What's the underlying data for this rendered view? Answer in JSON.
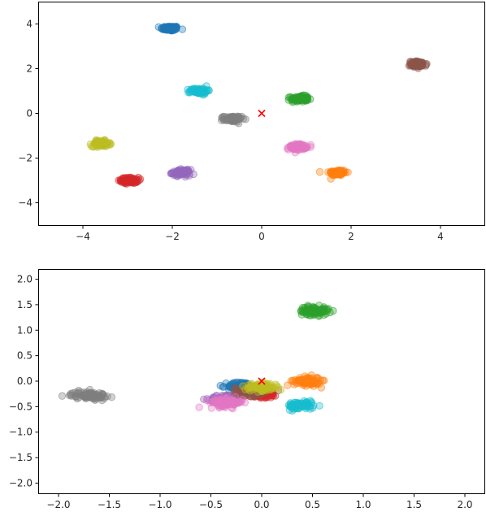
{
  "chart_data": [
    {
      "type": "scatter",
      "title": "",
      "xlabel": "",
      "ylabel": "",
      "xlim": [
        -5,
        5
      ],
      "ylim": [
        -5,
        5
      ],
      "grid": false,
      "legend": "none",
      "xticks": [
        -4,
        -2,
        0,
        2,
        4
      ],
      "yticks": [
        -4,
        -2,
        0,
        2,
        4
      ],
      "xtick_labels": [
        "−4",
        "−2",
        "0",
        "2",
        "4"
      ],
      "ytick_labels": [
        "−4",
        "−2",
        "0",
        "2",
        "4"
      ],
      "marker": {
        "x": 0,
        "y": 0,
        "symbol": "x",
        "color": "#ff0000"
      },
      "clusters": [
        {
          "color": "#1f77b4",
          "center": [
            -2.05,
            3.8
          ],
          "spread": [
            0.18,
            0.1
          ]
        },
        {
          "color": "#ff7f0e",
          "center": [
            1.7,
            -2.65
          ],
          "spread": [
            0.18,
            0.12
          ]
        },
        {
          "color": "#2ca02c",
          "center": [
            0.85,
            0.65
          ],
          "spread": [
            0.18,
            0.12
          ]
        },
        {
          "color": "#d62728",
          "center": [
            -2.95,
            -3.0
          ],
          "spread": [
            0.18,
            0.12
          ]
        },
        {
          "color": "#9467bd",
          "center": [
            -1.8,
            -2.65
          ],
          "spread": [
            0.18,
            0.12
          ]
        },
        {
          "color": "#8c564b",
          "center": [
            3.5,
            2.2
          ],
          "spread": [
            0.18,
            0.12
          ]
        },
        {
          "color": "#e377c2",
          "center": [
            0.8,
            -1.5
          ],
          "spread": [
            0.18,
            0.12
          ]
        },
        {
          "color": "#7f7f7f",
          "center": [
            -0.65,
            -0.25
          ],
          "spread": [
            0.18,
            0.12
          ]
        },
        {
          "color": "#bcbd22",
          "center": [
            -3.6,
            -1.35
          ],
          "spread": [
            0.18,
            0.12
          ]
        },
        {
          "color": "#17becf",
          "center": [
            -1.4,
            1.0
          ],
          "spread": [
            0.18,
            0.12
          ]
        }
      ]
    },
    {
      "type": "scatter",
      "title": "",
      "xlabel": "",
      "ylabel": "",
      "xlim": [
        -2.2,
        2.2
      ],
      "ylim": [
        -2.2,
        2.2
      ],
      "grid": false,
      "legend": "none",
      "xticks": [
        -2.0,
        -1.5,
        -1.0,
        -0.5,
        0.0,
        0.5,
        1.0,
        1.5,
        2.0
      ],
      "yticks": [
        -2.0,
        -1.5,
        -1.0,
        -0.5,
        0.0,
        0.5,
        1.0,
        1.5,
        2.0
      ],
      "xtick_labels": [
        "−2.0",
        "−1.5",
        "−1.0",
        "−0.5",
        "0.0",
        "0.5",
        "1.0",
        "1.5",
        "2.0"
      ],
      "ytick_labels": [
        "−2.0",
        "−1.5",
        "−1.0",
        "−0.5",
        "0.0",
        "0.5",
        "1.0",
        "1.5",
        "2.0"
      ],
      "marker": {
        "x": 0,
        "y": 0,
        "symbol": "x",
        "color": "#ff0000"
      },
      "clusters": [
        {
          "color": "#1f77b4",
          "center": [
            -0.2,
            -0.1
          ],
          "spread": [
            0.12,
            0.08
          ]
        },
        {
          "color": "#d62728",
          "center": [
            0.0,
            -0.25
          ],
          "spread": [
            0.15,
            0.08
          ]
        },
        {
          "color": "#9467bd",
          "center": [
            -0.35,
            -0.35
          ],
          "spread": [
            0.15,
            0.08
          ]
        },
        {
          "color": "#8c564b",
          "center": [
            -0.1,
            -0.2
          ],
          "spread": [
            0.15,
            0.08
          ]
        },
        {
          "color": "#e377c2",
          "center": [
            -0.35,
            -0.42
          ],
          "spread": [
            0.15,
            0.08
          ]
        },
        {
          "color": "#bcbd22",
          "center": [
            0.0,
            -0.12
          ],
          "spread": [
            0.15,
            0.07
          ]
        },
        {
          "color": "#ff7f0e",
          "center": [
            0.45,
            0.0
          ],
          "spread": [
            0.12,
            0.08
          ]
        },
        {
          "color": "#17becf",
          "center": [
            0.38,
            -0.48
          ],
          "spread": [
            0.12,
            0.07
          ]
        },
        {
          "color": "#2ca02c",
          "center": [
            0.52,
            1.38
          ],
          "spread": [
            0.13,
            0.08
          ]
        },
        {
          "color": "#7f7f7f",
          "center": [
            -1.7,
            -0.28
          ],
          "spread": [
            0.16,
            0.07
          ]
        }
      ]
    }
  ]
}
